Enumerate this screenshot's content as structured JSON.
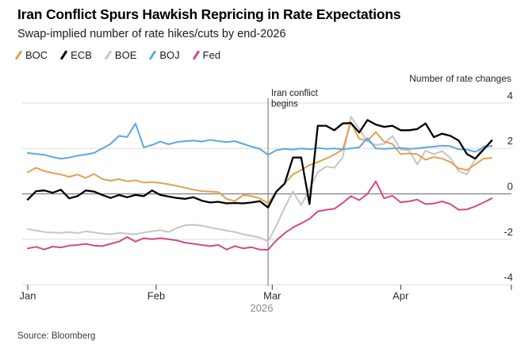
{
  "header": {
    "title": "Iran Conflict Spurs Hawkish Repricing in Rate Expectations",
    "subtitle": "Swap-implied number of rate hikes/cuts by end-2026"
  },
  "legend": [
    {
      "label": "BOC",
      "color": "#E2A14E"
    },
    {
      "label": "ECB",
      "color": "#000000"
    },
    {
      "label": "BOE",
      "color": "#C6C6C6"
    },
    {
      "label": "BOJ",
      "color": "#5CA8E0"
    },
    {
      "label": "Fed",
      "color": "#D1498C"
    }
  ],
  "footer": {
    "source": "Source: Bloomberg"
  },
  "chart_data": {
    "type": "line",
    "title": "Iran Conflict Spurs Hawkish Repricing in Rate Expectations",
    "subtitle": "Swap-implied number of rate hikes/cuts by end-2026",
    "ylabel": "Number of rate changes",
    "year_label": "2026",
    "yticks": [
      4,
      2,
      0,
      -2,
      -4
    ],
    "ylim": [
      -4.3,
      4.3
    ],
    "grid": true,
    "legend_position": "top",
    "annotation": {
      "line1": "Iran conflict",
      "line2": "begins",
      "day": 58
    },
    "xticks": [
      {
        "label": "Jan",
        "day": 0
      },
      {
        "label": "Feb",
        "day": 31
      },
      {
        "label": "Mar",
        "day": 59
      },
      {
        "label": "Apr",
        "day": 90
      }
    ],
    "x_days": [
      0,
      2,
      4,
      6,
      8,
      10,
      12,
      14,
      16,
      18,
      20,
      22,
      24,
      26,
      28,
      30,
      32,
      34,
      36,
      38,
      40,
      42,
      44,
      46,
      48,
      50,
      52,
      54,
      56,
      58,
      60,
      62,
      64,
      66,
      68,
      70,
      72,
      74,
      76,
      78,
      80,
      82,
      84,
      86,
      88,
      90,
      92,
      94,
      96,
      98,
      100,
      102,
      104,
      106,
      108,
      110,
      112
    ],
    "series": [
      {
        "name": "BOC",
        "color": "#E2A14E",
        "values": [
          0.95,
          1.15,
          1.0,
          0.92,
          0.85,
          0.75,
          0.85,
          0.7,
          0.88,
          0.65,
          0.58,
          0.65,
          0.55,
          0.6,
          0.5,
          0.52,
          0.48,
          0.42,
          0.35,
          0.27,
          0.18,
          0.12,
          0.1,
          0.08,
          -0.22,
          -0.32,
          -0.05,
          -0.1,
          -0.2,
          -0.42,
          0.1,
          0.45,
          0.86,
          1.05,
          1.27,
          1.4,
          1.55,
          1.73,
          1.95,
          3.15,
          2.42,
          2.35,
          2.72,
          2.3,
          2.2,
          1.75,
          1.78,
          1.75,
          1.5,
          1.62,
          1.55,
          1.4,
          1.12,
          1.05,
          1.3,
          1.55,
          1.58
        ]
      },
      {
        "name": "ECB",
        "color": "#000000",
        "values": [
          -0.25,
          0.12,
          0.15,
          0.05,
          0.18,
          -0.2,
          -0.1,
          0.15,
          0.1,
          -0.05,
          -0.18,
          -0.05,
          -0.15,
          -0.05,
          -0.1,
          0.15,
          -0.05,
          -0.12,
          -0.18,
          -0.22,
          -0.15,
          -0.3,
          -0.38,
          -0.35,
          -0.42,
          -0.4,
          -0.42,
          -0.38,
          -0.32,
          -0.6,
          0.1,
          0.45,
          1.6,
          1.6,
          -0.45,
          3.0,
          3.0,
          2.8,
          3.1,
          3.12,
          2.7,
          3.25,
          3.05,
          2.95,
          3.0,
          2.8,
          2.8,
          2.85,
          3.1,
          2.5,
          2.65,
          2.55,
          2.35,
          1.75,
          1.55,
          1.95,
          2.35
        ]
      },
      {
        "name": "BOE",
        "color": "#C6C6C6",
        "values": [
          -1.55,
          -1.62,
          -1.68,
          -1.7,
          -1.72,
          -1.68,
          -1.73,
          -1.65,
          -1.7,
          -1.75,
          -1.78,
          -1.72,
          -1.75,
          -1.78,
          -1.7,
          -1.65,
          -1.6,
          -1.68,
          -1.5,
          -1.38,
          -1.36,
          -1.4,
          -1.48,
          -1.55,
          -1.62,
          -1.68,
          -1.78,
          -1.85,
          -1.92,
          -2.1,
          -1.4,
          -0.6,
          0.1,
          -0.5,
          0.2,
          0.95,
          1.2,
          1.15,
          1.6,
          3.4,
          2.85,
          2.3,
          2.15,
          2.2,
          2.55,
          1.95,
          1.92,
          1.3,
          1.9,
          1.75,
          1.88,
          1.58,
          1.0,
          0.85,
          1.55,
          2.12,
          2.08
        ]
      },
      {
        "name": "BOJ",
        "color": "#5CA8E0",
        "values": [
          1.8,
          1.76,
          1.72,
          1.62,
          1.55,
          1.6,
          1.68,
          1.73,
          1.8,
          2.0,
          2.2,
          2.55,
          2.5,
          3.1,
          2.05,
          2.15,
          2.3,
          2.18,
          2.28,
          2.32,
          2.35,
          2.3,
          2.38,
          2.32,
          2.28,
          2.32,
          2.2,
          2.08,
          1.98,
          1.72,
          1.92,
          1.98,
          1.95,
          2.0,
          1.96,
          2.02,
          1.98,
          2.0,
          1.96,
          2.0,
          2.05,
          2.45,
          2.0,
          1.98,
          2.0,
          2.02,
          1.98,
          2.0,
          2.05,
          2.08,
          2.12,
          2.1,
          1.96,
          1.95,
          1.85,
          2.05,
          2.12
        ]
      },
      {
        "name": "Fed",
        "color": "#D1498C",
        "values": [
          -2.4,
          -2.33,
          -2.45,
          -2.32,
          -2.36,
          -2.28,
          -2.25,
          -2.2,
          -2.28,
          -2.3,
          -2.2,
          -2.1,
          -1.9,
          -2.1,
          -1.95,
          -2.0,
          -1.95,
          -2.0,
          -2.05,
          -2.15,
          -2.2,
          -2.25,
          -2.3,
          -2.25,
          -2.45,
          -2.3,
          -2.4,
          -2.35,
          -2.45,
          -2.46,
          -2.05,
          -1.73,
          -1.48,
          -1.3,
          -1.1,
          -0.77,
          -0.7,
          -0.66,
          -0.4,
          -0.1,
          -0.28,
          0.0,
          0.55,
          -0.2,
          -0.08,
          -0.37,
          -0.33,
          -0.25,
          -0.45,
          -0.43,
          -0.33,
          -0.45,
          -0.7,
          -0.68,
          -0.55,
          -0.38,
          -0.2
        ]
      }
    ],
    "draw_order": [
      "BOE",
      "Fed",
      "BOC",
      "BOJ",
      "ECB"
    ],
    "colors": {
      "grid": "#DBDBDB",
      "zero_line": "#7F7F7F",
      "event_line": "#6E6E6E",
      "tick": "#333333"
    }
  }
}
